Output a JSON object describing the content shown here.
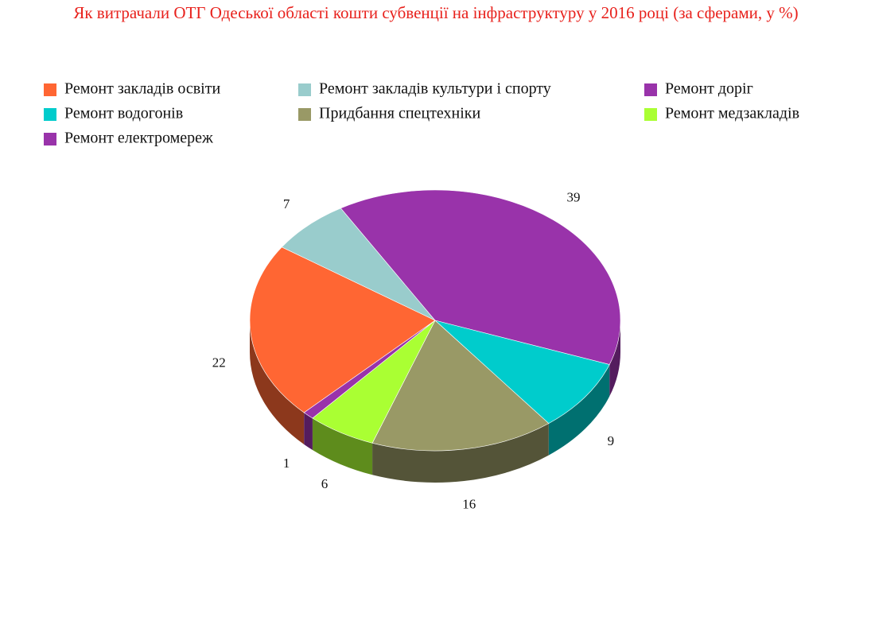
{
  "chart_data": {
    "type": "pie",
    "title": "Як витрачали ОТГ Одеської області кошти субвенції на інфраструктуру у 2016 році (за сферами, у %)",
    "categories": [
      "Ремонт закладів освіти",
      "Ремонт закладів культури і спорту",
      "Ремонт доріг",
      "Ремонт водогонів",
      "Придбання спецтехніки",
      "Ремонт медзакладів",
      "Ремонт електромереж"
    ],
    "values": [
      22,
      7,
      39,
      9,
      16,
      6,
      1
    ],
    "colors": [
      "#ff6633",
      "#99cccc",
      "#9933aa",
      "#00cccc",
      "#999966",
      "#aaff33",
      "#9933aa"
    ],
    "legend": "top"
  }
}
